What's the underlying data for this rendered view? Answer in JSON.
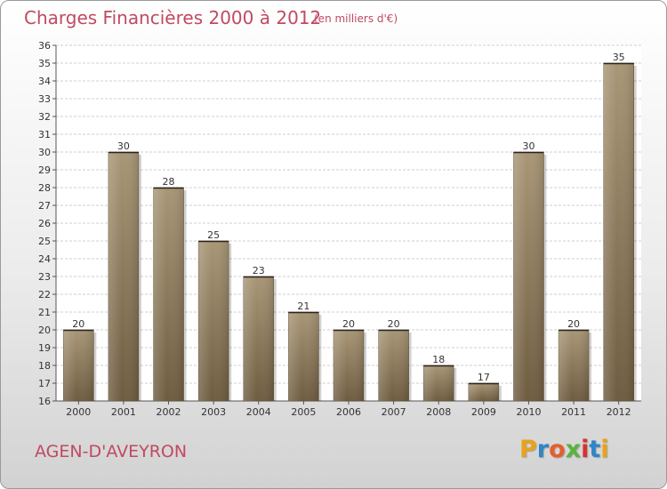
{
  "header": {
    "title": "Charges Financières 2000 à 2012",
    "subtitle": "(en milliers d'€)"
  },
  "footer": {
    "commune": "AGEN-D'AVEYRON",
    "logo_letters": [
      "P",
      "r",
      "o",
      "x",
      "i",
      "t",
      "i"
    ],
    "logo_colors": [
      "#e9a21b",
      "#2d86c9",
      "#e65e2b",
      "#5ab33b",
      "#d7322f",
      "#2d86c9",
      "#e9a21b"
    ]
  },
  "colors": {
    "bar_light": "#a89676",
    "bar_dark": "#6e5c40",
    "grid": "#cfcfcf",
    "title": "#c04a60"
  },
  "chart_data": {
    "type": "bar",
    "title": "Charges Financières 2000 à 2012",
    "subtitle": "(en milliers d'€)",
    "categories": [
      "2000",
      "2001",
      "2002",
      "2003",
      "2004",
      "2005",
      "2006",
      "2007",
      "2008",
      "2009",
      "2010",
      "2011",
      "2012"
    ],
    "values": [
      20,
      30,
      28,
      25,
      23,
      21,
      20,
      20,
      18,
      17,
      30,
      20,
      35
    ],
    "ylim": [
      16,
      36
    ],
    "yticks": [
      16,
      17,
      18,
      19,
      20,
      21,
      22,
      23,
      24,
      25,
      26,
      27,
      28,
      29,
      30,
      31,
      32,
      33,
      34,
      35,
      36
    ],
    "grid": true,
    "data_labels": true
  }
}
